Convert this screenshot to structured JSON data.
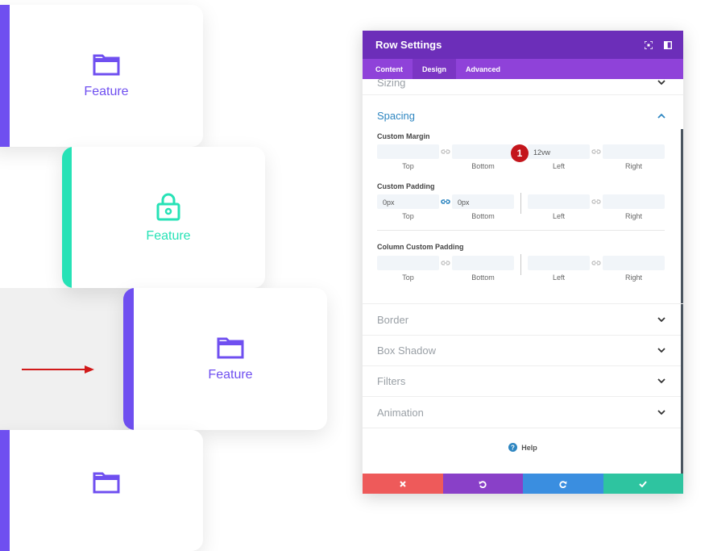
{
  "preview": {
    "cards": [
      {
        "label": "Feature",
        "color": "#6f4ff0",
        "icon": "folder-icon"
      },
      {
        "label": "Feature",
        "color": "#26e2b6",
        "icon": "lock-icon"
      },
      {
        "label": "Feature",
        "color": "#6f4ff0",
        "icon": "folder-icon"
      },
      {
        "label": "",
        "color": "#6f4ff0",
        "icon": "folder-icon"
      }
    ],
    "arrow_color": "#d11a1a"
  },
  "panel": {
    "title": "Row Settings",
    "header_color": "#6c2eb9",
    "tabs": [
      "Content",
      "Design",
      "Advanced"
    ],
    "active_tab": "Design",
    "sections_top": [
      {
        "label": "Sizing"
      }
    ],
    "open_section": {
      "label": "Spacing",
      "groups": [
        {
          "label": "Custom Margin",
          "fields": [
            {
              "label": "Top",
              "value": ""
            },
            {
              "label": "Bottom",
              "value": ""
            },
            {
              "label": "Left",
              "value": "12vw"
            },
            {
              "label": "Right",
              "value": ""
            }
          ]
        },
        {
          "label": "Custom Padding",
          "fields": [
            {
              "label": "Top",
              "value": "0px"
            },
            {
              "label": "Bottom",
              "value": "0px"
            },
            {
              "label": "Left",
              "value": ""
            },
            {
              "label": "Right",
              "value": ""
            }
          ]
        },
        {
          "label": "Column Custom Padding",
          "fields": [
            {
              "label": "Top",
              "value": ""
            },
            {
              "label": "Bottom",
              "value": ""
            },
            {
              "label": "Left",
              "value": ""
            },
            {
              "label": "Right",
              "value": ""
            }
          ]
        }
      ],
      "step_badge": "1"
    },
    "sections_bottom": [
      {
        "label": "Border"
      },
      {
        "label": "Box Shadow"
      },
      {
        "label": "Filters"
      },
      {
        "label": "Animation"
      }
    ],
    "help_label": "Help",
    "footer_colors": [
      "#ee5a5a",
      "#8940c8",
      "#3a8ee0",
      "#2ec4a0"
    ]
  }
}
